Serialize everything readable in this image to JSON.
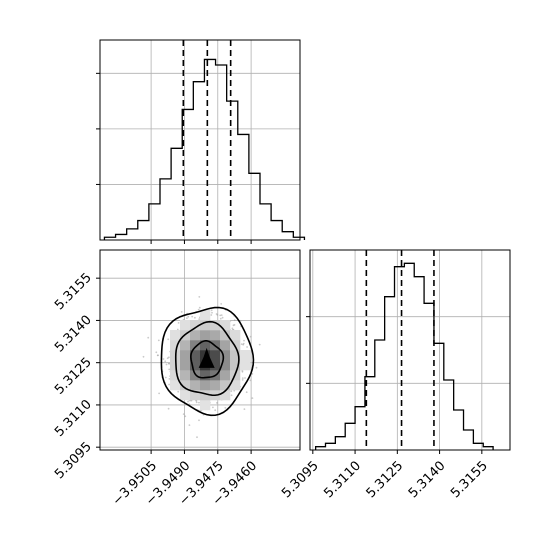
{
  "chart_data": [
    {
      "panel": "top-left",
      "type": "histogram",
      "variable": "x",
      "bins": [
        {
          "x0": -3.9526,
          "x1": -3.9521,
          "count": 1
        },
        {
          "x0": -3.9521,
          "x1": -3.9516,
          "count": 2
        },
        {
          "x0": -3.9516,
          "x1": -3.9511,
          "count": 4
        },
        {
          "x0": -3.9511,
          "x1": -3.9506,
          "count": 7
        },
        {
          "x0": -3.9506,
          "x1": -3.9501,
          "count": 13
        },
        {
          "x0": -3.9501,
          "x1": -3.9496,
          "count": 22
        },
        {
          "x0": -3.9496,
          "x1": -3.9491,
          "count": 33
        },
        {
          "x0": -3.9491,
          "x1": -3.9486,
          "count": 47
        },
        {
          "x0": -3.9486,
          "x1": -3.9481,
          "count": 57
        },
        {
          "x0": -3.9481,
          "x1": -3.9476,
          "count": 65
        },
        {
          "x0": -3.9476,
          "x1": -3.9471,
          "count": 63
        },
        {
          "x0": -3.9471,
          "x1": -3.9466,
          "count": 50
        },
        {
          "x0": -3.9466,
          "x1": -3.9461,
          "count": 38
        },
        {
          "x0": -3.9461,
          "x1": -3.9456,
          "count": 24
        },
        {
          "x0": -3.9456,
          "x1": -3.9451,
          "count": 13
        },
        {
          "x0": -3.9451,
          "x1": -3.9446,
          "count": 7
        },
        {
          "x0": -3.9446,
          "x1": -3.9441,
          "count": 3
        },
        {
          "x0": -3.9441,
          "x1": -3.9436,
          "count": 1
        }
      ],
      "xlim": [
        -3.9528,
        -3.9438
      ],
      "ylim": [
        0,
        72
      ],
      "quantiles": [
        -3.94905,
        -3.94797,
        -3.94692
      ],
      "xticks": [
        -3.9505,
        -3.949,
        -3.9475,
        -3.946
      ],
      "yticks": [
        20,
        40,
        60
      ],
      "show_tick_labels": false,
      "grid": true
    },
    {
      "panel": "bottom-left",
      "type": "heatmap",
      "subtype": "2d-density",
      "variables": [
        "x",
        "y"
      ],
      "center": {
        "x": -3.948,
        "y": 5.3126
      },
      "contours": [
        {
          "level": 0.39,
          "rx": 0.00072,
          "ry": 0.00065
        },
        {
          "level": 0.86,
          "rx": 0.00142,
          "ry": 0.00128
        },
        {
          "level": 0.99,
          "rx": 0.00207,
          "ry": 0.00187
        }
      ],
      "xlim": [
        -3.9528,
        -3.9438
      ],
      "ylim": [
        5.3094,
        5.3165
      ],
      "xticks": [
        -3.9505,
        -3.949,
        -3.9475,
        -3.946
      ],
      "xtick_labels": [
        "−3.9505",
        "−3.9490",
        "−3.9475",
        "−3.9460"
      ],
      "yticks": [
        5.3095,
        5.311,
        5.3125,
        5.314,
        5.3155
      ],
      "ytick_labels": [
        "5.3095",
        "5.3110",
        "5.3125",
        "5.3140",
        "5.3155"
      ],
      "grid": true
    },
    {
      "panel": "bottom-right",
      "type": "histogram",
      "variable": "y",
      "bins": [
        {
          "x0": 5.3096,
          "x1": 5.30995,
          "count": 1
        },
        {
          "x0": 5.30995,
          "x1": 5.3103,
          "count": 2
        },
        {
          "x0": 5.3103,
          "x1": 5.31065,
          "count": 4
        },
        {
          "x0": 5.31065,
          "x1": 5.311,
          "count": 8
        },
        {
          "x0": 5.311,
          "x1": 5.31135,
          "count": 13
        },
        {
          "x0": 5.31135,
          "x1": 5.3117,
          "count": 22
        },
        {
          "x0": 5.3117,
          "x1": 5.31205,
          "count": 33
        },
        {
          "x0": 5.31205,
          "x1": 5.3124,
          "count": 46
        },
        {
          "x0": 5.3124,
          "x1": 5.31275,
          "count": 55
        },
        {
          "x0": 5.31275,
          "x1": 5.3131,
          "count": 56
        },
        {
          "x0": 5.3131,
          "x1": 5.31345,
          "count": 52
        },
        {
          "x0": 5.31345,
          "x1": 5.3138,
          "count": 44
        },
        {
          "x0": 5.3138,
          "x1": 5.31415,
          "count": 32
        },
        {
          "x0": 5.31415,
          "x1": 5.3145,
          "count": 21
        },
        {
          "x0": 5.3145,
          "x1": 5.31485,
          "count": 12
        },
        {
          "x0": 5.31485,
          "x1": 5.3152,
          "count": 6
        },
        {
          "x0": 5.3152,
          "x1": 5.31555,
          "count": 2
        },
        {
          "x0": 5.31555,
          "x1": 5.3159,
          "count": 1
        }
      ],
      "xlim": [
        5.3094,
        5.3165
      ],
      "ylim": [
        0,
        60
      ],
      "quantiles": [
        5.3114,
        5.31265,
        5.3138
      ],
      "xticks": [
        5.3095,
        5.311,
        5.3125,
        5.314,
        5.3155
      ],
      "xtick_labels": [
        "5.3095",
        "5.3110",
        "5.3125",
        "5.3140",
        "5.3155"
      ],
      "yticks": [
        20,
        40
      ],
      "show_tick_labels": false,
      "grid": true
    }
  ]
}
